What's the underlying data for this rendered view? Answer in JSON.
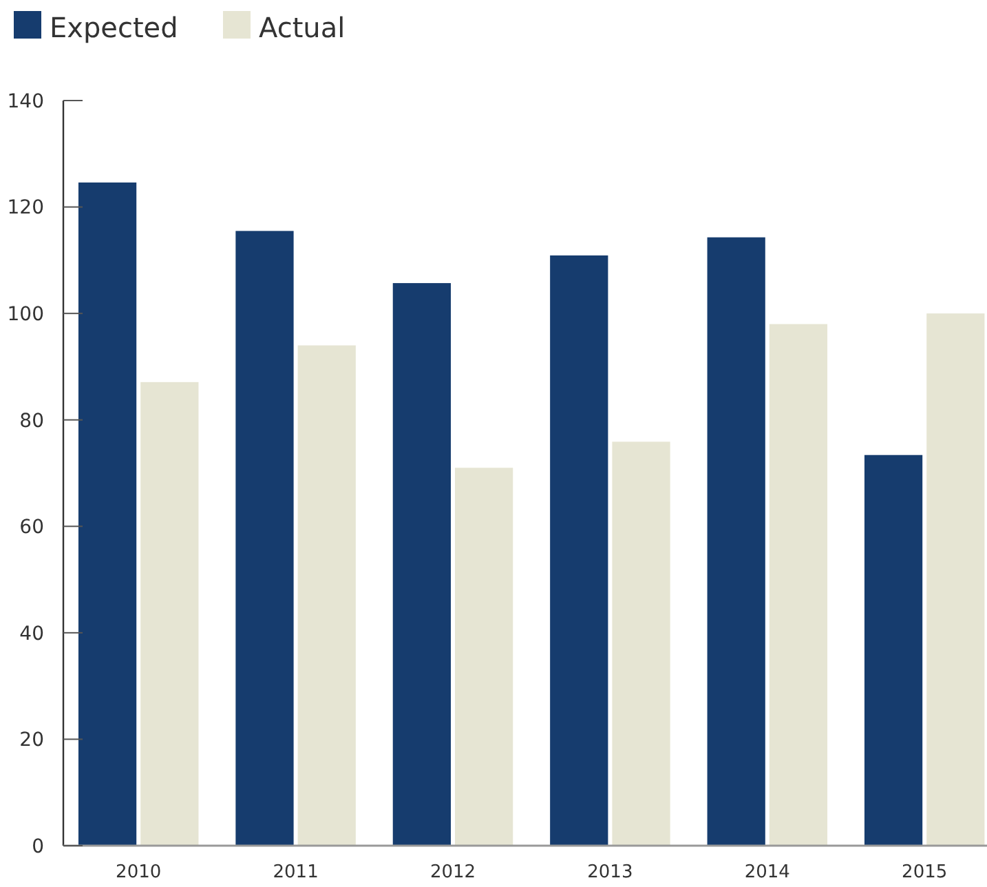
{
  "chart_data": {
    "type": "bar",
    "categories": [
      "2010",
      "2011",
      "2012",
      "2013",
      "2014",
      "2015"
    ],
    "series": [
      {
        "name": "Expected",
        "color": "#163c6e",
        "values": [
          124.6,
          115.5,
          105.7,
          110.9,
          114.3,
          73.4
        ]
      },
      {
        "name": "Actual",
        "color": "#e6e5d3",
        "values": [
          87.1,
          94,
          71,
          75.9,
          98,
          100
        ]
      }
    ],
    "ylim": [
      0,
      140
    ],
    "yticks": [
      0,
      20,
      40,
      60,
      80,
      100,
      120,
      140
    ],
    "grid": false,
    "legend": "top left"
  }
}
